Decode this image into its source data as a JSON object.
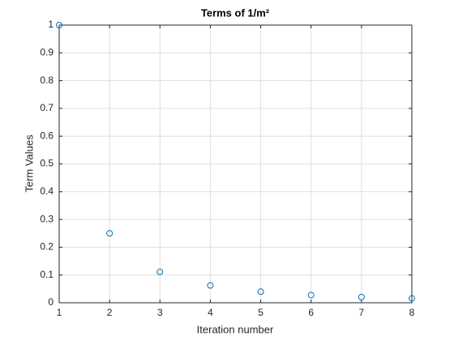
{
  "chart_data": {
    "type": "scatter",
    "title": "Terms of 1/m²",
    "xlabel": "Iteration number",
    "ylabel": "Term Values",
    "x": [
      1,
      2,
      3,
      4,
      5,
      6,
      7,
      8
    ],
    "values": [
      1,
      0.25,
      0.111,
      0.0625,
      0.04,
      0.0278,
      0.0204,
      0.0156
    ],
    "color": "#0072bd",
    "xlim": [
      1,
      8
    ],
    "xticks": [
      1,
      2,
      3,
      4,
      5,
      6,
      7,
      8
    ],
    "ylim": [
      0,
      1
    ],
    "yticks": [
      0,
      0.1,
      0.2,
      0.3,
      0.4,
      0.5,
      0.6,
      0.7,
      0.8,
      0.9,
      1
    ],
    "grid": true
  }
}
